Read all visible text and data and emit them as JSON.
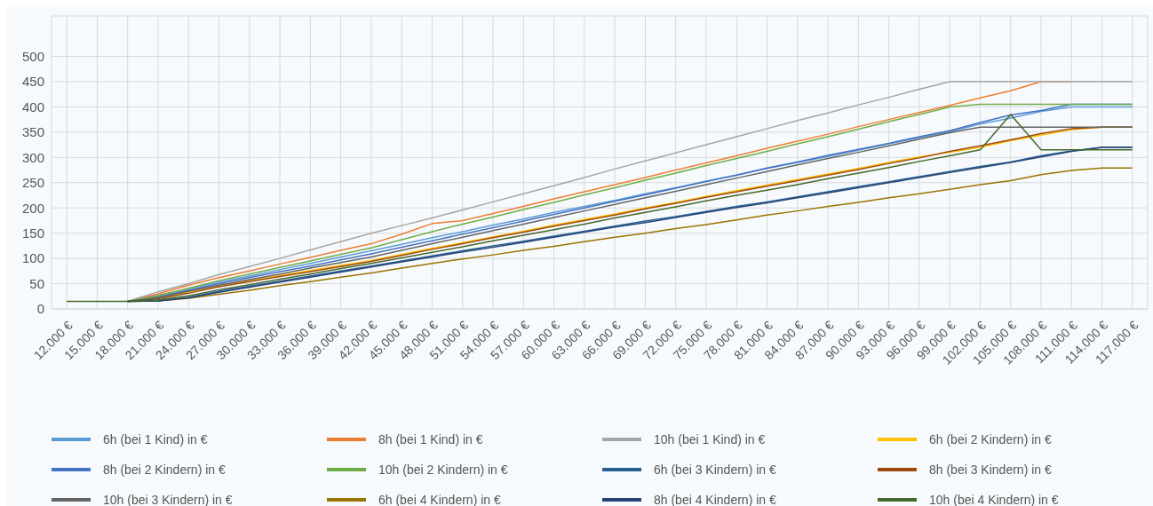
{
  "chart_data": {
    "type": "line",
    "categories": [
      "12.000 €",
      "15.000 €",
      "18.000 €",
      "21.000 €",
      "24.000 €",
      "27.000 €",
      "30.000 €",
      "33.000 €",
      "36.000 €",
      "39.000 €",
      "42.000 €",
      "45.000 €",
      "48.000 €",
      "51.000 €",
      "54.000 €",
      "57.000 €",
      "60.000 €",
      "63.000 €",
      "66.000 €",
      "69.000 €",
      "72.000 €",
      "75.000 €",
      "78.000 €",
      "81.000 €",
      "84.000 €",
      "87.000 €",
      "90.000 €",
      "93.000 €",
      "96.000 €",
      "99.000 €",
      "102.000 €",
      "105.000 €",
      "108.000 €",
      "111.000 €",
      "114.000 €",
      "117.000 €"
    ],
    "ylim": [
      0,
      580
    ],
    "yticks": [
      0,
      50,
      100,
      150,
      200,
      250,
      300,
      350,
      400,
      450,
      500
    ],
    "grid": true,
    "legend": "bottom",
    "series": [
      {
        "name": "6h (bei 1 Kind) in €",
        "color": "#5b9bd5",
        "values": [
          null,
          null,
          15,
          27,
          40,
          53,
          65,
          78,
          90,
          103,
          115,
          128,
          141,
          153,
          166,
          178,
          191,
          203,
          215,
          228,
          240,
          253,
          265,
          278,
          290,
          302,
          314,
          327,
          339,
          351,
          366,
          378,
          391,
          400,
          400,
          400
        ]
      },
      {
        "name": "8h (bei 1 Kind) in €",
        "color": "#ed7d31",
        "values": [
          null,
          null,
          15,
          30,
          47,
          62,
          75,
          89,
          102,
          116,
          129,
          148,
          169,
          175,
          189,
          203,
          218,
          232,
          246,
          260,
          275,
          289,
          303,
          318,
          332,
          346,
          361,
          375,
          389,
          403,
          418,
          432,
          450,
          450,
          null,
          null
        ]
      },
      {
        "name": "10h (bei 1 Kind) in €",
        "color": "#a5a5a5",
        "values": [
          null,
          null,
          15,
          34,
          50,
          68,
          84,
          100,
          117,
          133,
          150,
          165,
          180,
          196,
          212,
          228,
          244,
          260,
          277,
          293,
          309,
          325,
          341,
          357,
          373,
          388,
          404,
          419,
          435,
          450,
          450,
          450,
          450,
          450,
          450,
          450
        ]
      },
      {
        "name": "6h (bei 2 Kindern) in €",
        "color": "#ffc000",
        "values": [
          null,
          null,
          null,
          21,
          34,
          46,
          56,
          66,
          76,
          86,
          96,
          108,
          120,
          131,
          143,
          154,
          166,
          177,
          188,
          200,
          211,
          223,
          234,
          245,
          256,
          267,
          278,
          290,
          301,
          310,
          320,
          333,
          344,
          355,
          360,
          360
        ]
      },
      {
        "name": "8h (bei 2 Kindern) in €",
        "color": "#4472c4",
        "values": [
          null,
          null,
          15,
          24,
          37,
          50,
          62,
          74,
          85,
          97,
          109,
          122,
          135,
          148,
          161,
          174,
          187,
          200,
          213,
          226,
          239,
          252,
          265,
          279,
          291,
          304,
          316,
          328,
          341,
          353,
          369,
          384,
          393,
          405,
          405,
          405
        ]
      },
      {
        "name": "10h (bei 2 Kindern) in €",
        "color": "#70ad47",
        "values": [
          null,
          null,
          15,
          26,
          41,
          56,
          69,
          82,
          95,
          108,
          121,
          137,
          153,
          168,
          182,
          197,
          211,
          226,
          240,
          255,
          269,
          284,
          298,
          312,
          327,
          341,
          356,
          371,
          385,
          400,
          405,
          405,
          405,
          405,
          405,
          405
        ]
      },
      {
        "name": "6h (bei 3 Kindern) in €",
        "color": "#255e91",
        "values": [
          null,
          null,
          15,
          16,
          23,
          35,
          45,
          55,
          65,
          75,
          85,
          95,
          105,
          115,
          125,
          134,
          144,
          154,
          164,
          174,
          183,
          193,
          203,
          212,
          222,
          232,
          242,
          252,
          262,
          272,
          282,
          291,
          303,
          313,
          320,
          320
        ]
      },
      {
        "name": "8h (bei 3 Kindern) in €",
        "color": "#9e480e",
        "values": [
          null,
          null,
          15,
          20,
          31,
          44,
          54,
          64,
          74,
          84,
          94,
          106,
          118,
          129,
          141,
          152,
          164,
          175,
          186,
          198,
          209,
          221,
          232,
          243,
          254,
          265,
          276,
          288,
          299,
          312,
          323,
          335,
          347,
          357,
          360,
          360
        ]
      },
      {
        "name": "10h (bei 3 Kindern) in €",
        "color": "#636363",
        "values": [
          null,
          null,
          15,
          22,
          35,
          47,
          58,
          69,
          81,
          92,
          103,
          116,
          129,
          142,
          155,
          168,
          181,
          194,
          207,
          220,
          233,
          246,
          259,
          272,
          285,
          298,
          310,
          323,
          336,
          349,
          360,
          360,
          360,
          360,
          360,
          360
        ]
      },
      {
        "name": "6h (bei 4 Kindern) in €",
        "color": "#997300",
        "values": [
          null,
          null,
          15,
          16,
          21,
          29,
          37,
          46,
          54,
          63,
          71,
          81,
          90,
          99,
          107,
          116,
          124,
          133,
          142,
          150,
          159,
          167,
          176,
          186,
          194,
          203,
          211,
          220,
          228,
          237,
          246,
          254,
          266,
          274,
          279,
          279
        ]
      },
      {
        "name": "8h (bei 4 Kindern) in €",
        "color": "#264478",
        "values": [
          null,
          null,
          15,
          16,
          22,
          33,
          43,
          53,
          63,
          73,
          83,
          93,
          103,
          113,
          122,
          132,
          142,
          152,
          162,
          171,
          181,
          191,
          201,
          210,
          220,
          230,
          240,
          250,
          260,
          270,
          280,
          290,
          301,
          312,
          320,
          320
        ]
      },
      {
        "name": "10h (bei 4 Kindern) in €",
        "color": "#43682b",
        "values": [
          15,
          15,
          15,
          18,
          26,
          38,
          48,
          59,
          69,
          80,
          90,
          101,
          112,
          123,
          135,
          146,
          157,
          168,
          180,
          191,
          202,
          214,
          225,
          235,
          246,
          258,
          269,
          280,
          292,
          303,
          315,
          385,
          315,
          315,
          315,
          315
        ]
      }
    ]
  }
}
